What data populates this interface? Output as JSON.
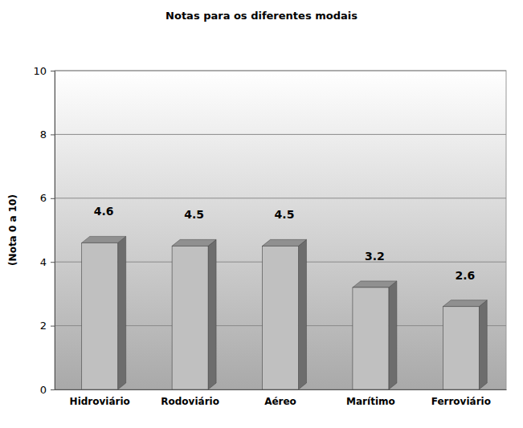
{
  "chart_data": {
    "type": "bar",
    "title": "Notas para os diferentes modais",
    "y_label": "(Nota 0 a 10)",
    "categories": [
      "Hidroviário",
      "Rodoviário",
      "Aéreo",
      "Marítimo",
      "Ferroviário"
    ],
    "values": [
      4.6,
      4.5,
      4.5,
      3.2,
      2.6
    ],
    "color": "#c0c0c0",
    "ylim": [
      0,
      10
    ],
    "yticks": [
      0,
      2,
      4,
      6,
      8,
      10
    ],
    "grid": true,
    "data_labels": true
  }
}
